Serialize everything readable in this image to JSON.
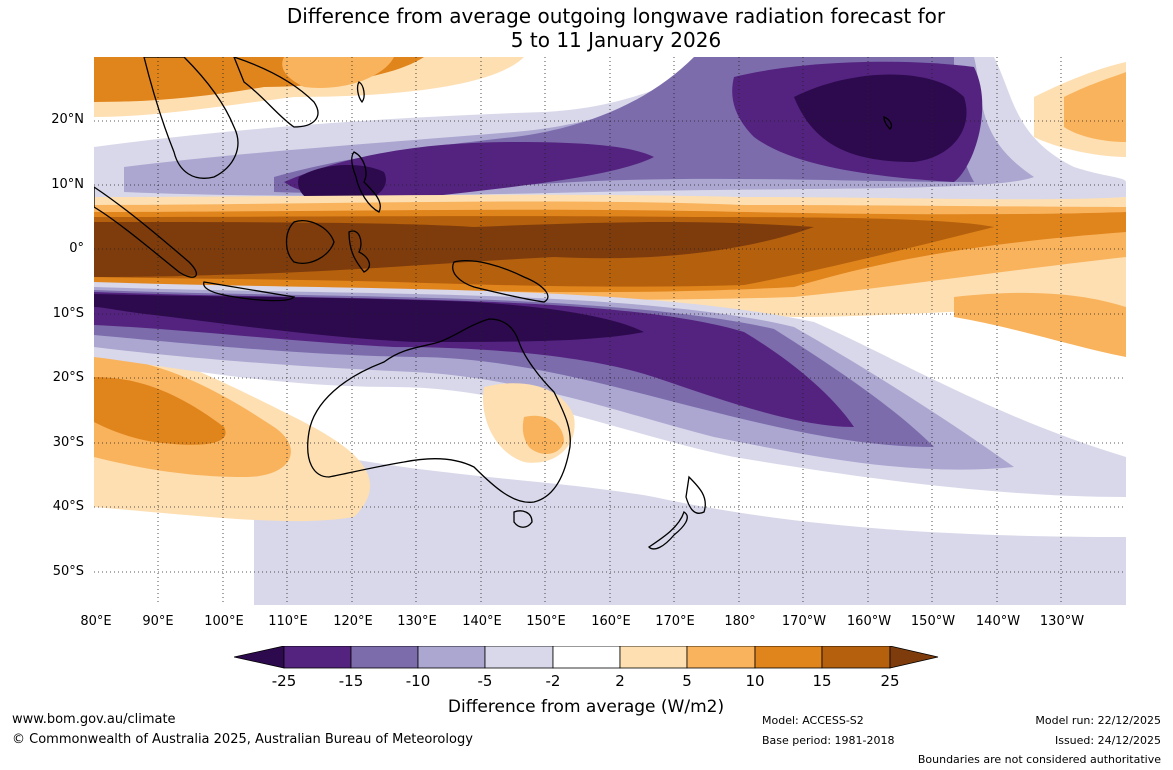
{
  "title": {
    "line1": "Difference from average outgoing longwave radiation forecast for",
    "line2": "5 to 11 January 2026"
  },
  "map": {
    "lat_labels": [
      "20°N",
      "10°N",
      "0°",
      "10°S",
      "20°S",
      "30°S",
      "40°S",
      "50°S"
    ],
    "lon_labels": [
      "80°E",
      "90°E",
      "100°E",
      "110°E",
      "120°E",
      "130°E",
      "140°E",
      "150°E",
      "160°E",
      "170°E",
      "180°",
      "170°W",
      "160°W",
      "150°W",
      "140°W",
      "130°W"
    ],
    "extent": {
      "lon_min": 80,
      "lon_max": 240,
      "lat_min": -55,
      "lat_max": 30
    }
  },
  "legend": {
    "title": "Difference from average (W/m2)",
    "tick_labels": [
      "-25",
      "-15",
      "-10",
      "-5",
      "-2",
      "2",
      "5",
      "10",
      "15",
      "25"
    ],
    "colors": {
      "lt_minus25": "#2d0a4e",
      "minus25_minus15": "#54237f",
      "minus15_minus10": "#7c6cac",
      "minus10_minus5": "#aba7d0",
      "minus5_minus2": "#d8d8ea",
      "minus2_2": "#ffffff",
      "2_5": "#fddfb2",
      "5_10": "#f9b35c",
      "10_15": "#e0841c",
      "15_25": "#b5600d",
      "gt_25": "#7e3c0c"
    }
  },
  "footer": {
    "website": "www.bom.gov.au/climate",
    "copyright": "© Commonwealth of Australia 2025, Australian Bureau of Meteorology",
    "model": "Model: ACCESS-S2",
    "base_period": "Base period: 1981-2018",
    "model_run": "Model run: 22/12/2025",
    "issued": "Issued: 24/12/2025",
    "disclaimer": "Boundaries are not considered authoritative"
  }
}
